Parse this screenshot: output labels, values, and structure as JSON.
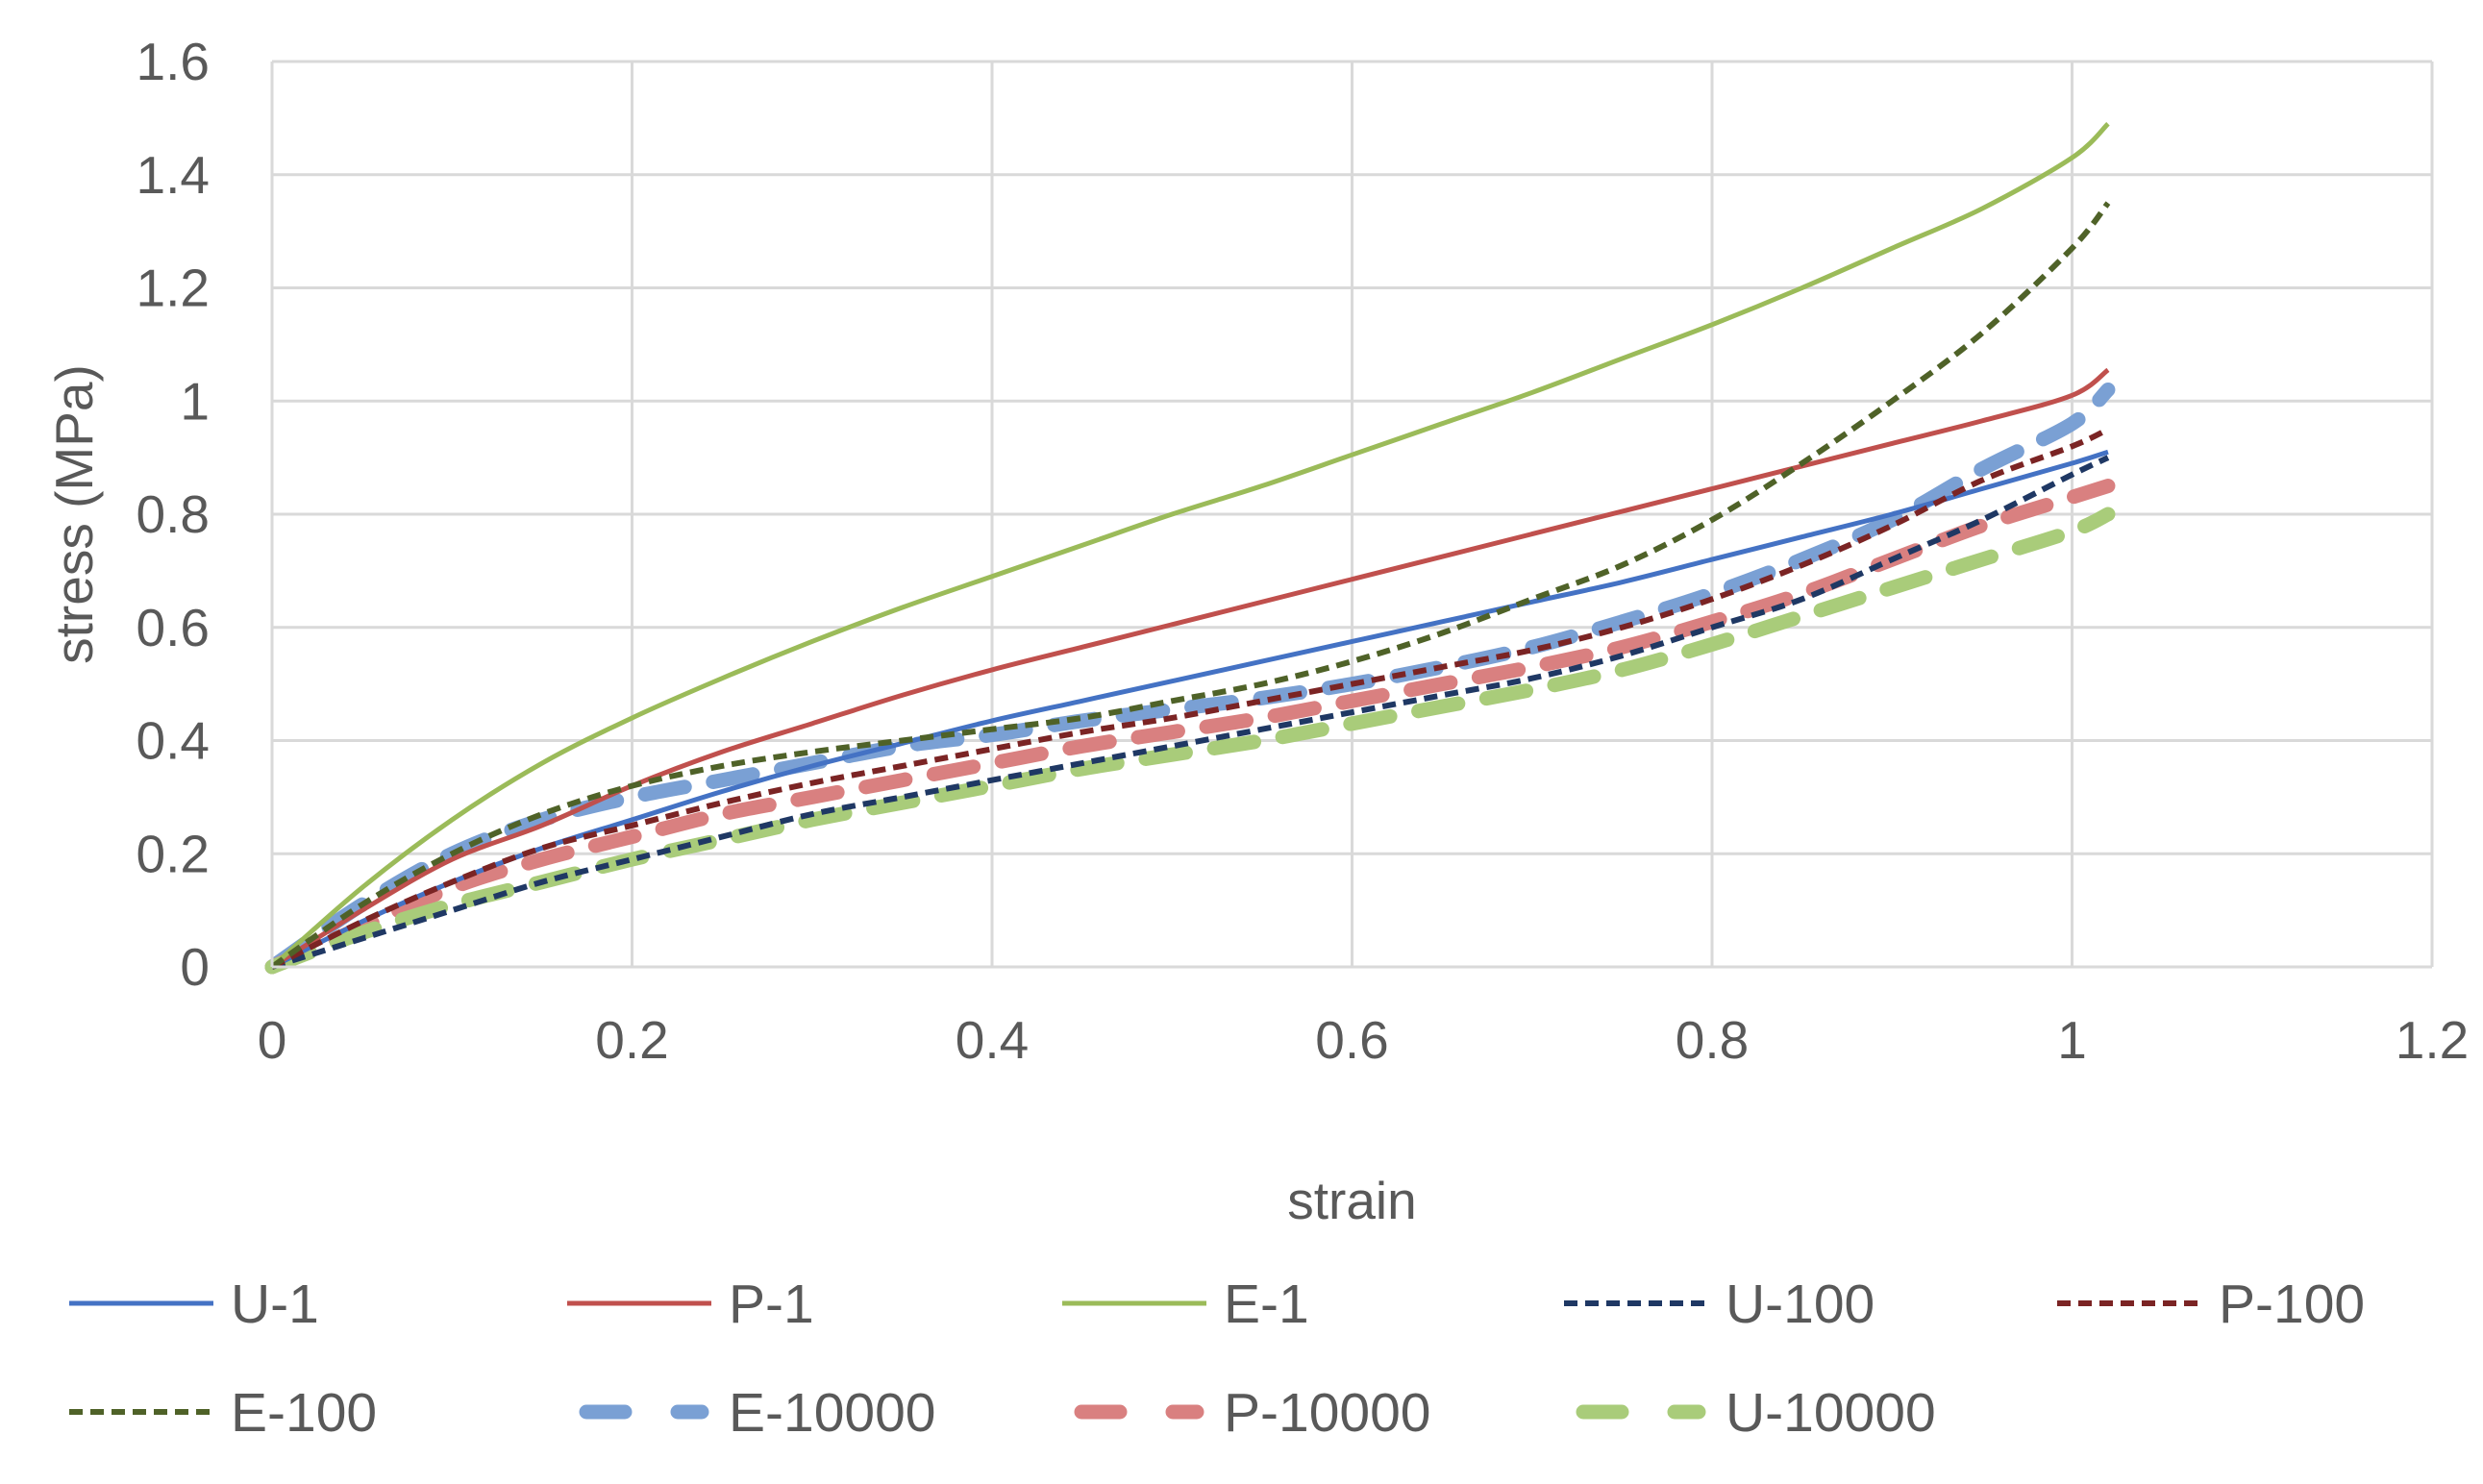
{
  "chart_data": {
    "type": "line",
    "title": "",
    "xlabel": "strain",
    "ylabel": "stress (MPa)",
    "xlim": [
      0,
      1.2
    ],
    "ylim": [
      0,
      1.6
    ],
    "xticks": [
      0,
      0.2,
      0.4,
      0.6,
      0.8,
      1,
      1.2
    ],
    "xtick_labels": [
      "0",
      "0.2",
      "0.4",
      "0.6",
      "0.8",
      "1",
      "1.2"
    ],
    "yticks": [
      0,
      0.2,
      0.4,
      0.6,
      0.8,
      1,
      1.2,
      1.4,
      1.6
    ],
    "ytick_labels": [
      "0",
      "0.2",
      "0.4",
      "0.6",
      "0.8",
      "1",
      "1.2",
      "1.4",
      "1.6"
    ],
    "grid": true,
    "legend_position": "bottom",
    "series": [
      {
        "name": "U-1",
        "color": "#4472C4",
        "style": "solid",
        "x": [
          0,
          0.05,
          0.1,
          0.15,
          0.2,
          0.25,
          0.3,
          0.35,
          0.4,
          0.45,
          0.5,
          0.55,
          0.6,
          0.65,
          0.7,
          0.75,
          0.8,
          0.85,
          0.9,
          0.95,
          1.0,
          1.02
        ],
        "y": [
          0,
          0.08,
          0.15,
          0.21,
          0.26,
          0.31,
          0.355,
          0.395,
          0.435,
          0.47,
          0.505,
          0.54,
          0.575,
          0.61,
          0.645,
          0.68,
          0.72,
          0.76,
          0.8,
          0.845,
          0.89,
          0.91
        ]
      },
      {
        "name": "P-1",
        "color": "#C0504D",
        "style": "solid",
        "x": [
          0,
          0.05,
          0.1,
          0.15,
          0.2,
          0.25,
          0.3,
          0.35,
          0.4,
          0.45,
          0.5,
          0.55,
          0.6,
          0.65,
          0.7,
          0.75,
          0.8,
          0.85,
          0.9,
          0.95,
          1.0,
          1.02
        ],
        "y": [
          0,
          0.1,
          0.19,
          0.25,
          0.32,
          0.38,
          0.43,
          0.48,
          0.525,
          0.565,
          0.605,
          0.645,
          0.685,
          0.725,
          0.765,
          0.805,
          0.845,
          0.885,
          0.925,
          0.965,
          1.01,
          1.055
        ]
      },
      {
        "name": "E-1",
        "color": "#9BBB59",
        "style": "solid",
        "x": [
          0,
          0.05,
          0.1,
          0.15,
          0.2,
          0.25,
          0.3,
          0.35,
          0.4,
          0.45,
          0.5,
          0.55,
          0.6,
          0.65,
          0.7,
          0.75,
          0.8,
          0.85,
          0.9,
          0.95,
          1.0,
          1.02
        ],
        "y": [
          0,
          0.14,
          0.26,
          0.36,
          0.44,
          0.51,
          0.575,
          0.635,
          0.69,
          0.745,
          0.8,
          0.85,
          0.905,
          0.96,
          1.015,
          1.075,
          1.135,
          1.2,
          1.27,
          1.34,
          1.43,
          1.49
        ]
      },
      {
        "name": "U-100",
        "color": "#1F3864",
        "style": "dashed",
        "x": [
          0,
          0.05,
          0.1,
          0.15,
          0.2,
          0.25,
          0.3,
          0.35,
          0.4,
          0.45,
          0.5,
          0.55,
          0.6,
          0.65,
          0.7,
          0.75,
          0.8,
          0.85,
          0.9,
          0.95,
          1.0,
          1.02
        ],
        "y": [
          0,
          0.05,
          0.1,
          0.15,
          0.19,
          0.23,
          0.27,
          0.3,
          0.33,
          0.36,
          0.39,
          0.42,
          0.45,
          0.48,
          0.51,
          0.55,
          0.6,
          0.65,
          0.72,
          0.79,
          0.87,
          0.9
        ]
      },
      {
        "name": "P-100",
        "color": "#7B2424",
        "style": "dashed",
        "x": [
          0,
          0.05,
          0.1,
          0.15,
          0.2,
          0.25,
          0.3,
          0.35,
          0.4,
          0.45,
          0.5,
          0.55,
          0.6,
          0.65,
          0.7,
          0.75,
          0.8,
          0.85,
          0.9,
          0.95,
          1.0,
          1.02
        ],
        "y": [
          0,
          0.08,
          0.15,
          0.21,
          0.25,
          0.29,
          0.325,
          0.355,
          0.385,
          0.415,
          0.44,
          0.47,
          0.5,
          0.53,
          0.56,
          0.6,
          0.65,
          0.71,
          0.78,
          0.86,
          0.92,
          0.95
        ]
      },
      {
        "name": "E-100",
        "color": "#4F6228",
        "style": "dashed",
        "x": [
          0,
          0.05,
          0.1,
          0.15,
          0.2,
          0.25,
          0.3,
          0.35,
          0.4,
          0.45,
          0.5,
          0.55,
          0.6,
          0.65,
          0.7,
          0.75,
          0.8,
          0.85,
          0.9,
          0.95,
          1.0,
          1.02
        ],
        "y": [
          0,
          0.11,
          0.2,
          0.27,
          0.32,
          0.355,
          0.38,
          0.4,
          0.42,
          0.44,
          0.47,
          0.5,
          0.54,
          0.59,
          0.65,
          0.71,
          0.79,
          0.89,
          1.0,
          1.12,
          1.27,
          1.35
        ]
      },
      {
        "name": "E-10000",
        "color": "#7AA0D4",
        "style": "longdash",
        "x": [
          0,
          0.05,
          0.1,
          0.15,
          0.2,
          0.25,
          0.3,
          0.35,
          0.4,
          0.45,
          0.5,
          0.55,
          0.6,
          0.65,
          0.7,
          0.75,
          0.8,
          0.85,
          0.9,
          0.95,
          1.0,
          1.02
        ],
        "y": [
          0,
          0.11,
          0.2,
          0.26,
          0.3,
          0.33,
          0.36,
          0.39,
          0.41,
          0.435,
          0.455,
          0.475,
          0.5,
          0.53,
          0.565,
          0.61,
          0.66,
          0.72,
          0.79,
          0.88,
          0.96,
          1.02
        ]
      },
      {
        "name": "P-10000",
        "color": "#D98080",
        "style": "longdash",
        "x": [
          0,
          0.05,
          0.1,
          0.15,
          0.2,
          0.25,
          0.3,
          0.35,
          0.4,
          0.45,
          0.5,
          0.55,
          0.6,
          0.65,
          0.7,
          0.75,
          0.8,
          0.85,
          0.9,
          0.95,
          1.0,
          1.02
        ],
        "y": [
          0,
          0.07,
          0.14,
          0.19,
          0.23,
          0.27,
          0.3,
          0.33,
          0.36,
          0.39,
          0.415,
          0.44,
          0.47,
          0.5,
          0.53,
          0.565,
          0.61,
          0.66,
          0.72,
          0.78,
          0.83,
          0.85
        ]
      },
      {
        "name": "U-10000",
        "color": "#A9CC7A",
        "style": "longdash",
        "x": [
          0,
          0.05,
          0.1,
          0.15,
          0.2,
          0.25,
          0.3,
          0.35,
          0.4,
          0.45,
          0.5,
          0.55,
          0.6,
          0.65,
          0.7,
          0.75,
          0.8,
          0.85,
          0.9,
          0.95,
          1.0,
          1.02
        ],
        "y": [
          0,
          0.06,
          0.11,
          0.15,
          0.19,
          0.225,
          0.26,
          0.29,
          0.32,
          0.35,
          0.375,
          0.4,
          0.43,
          0.46,
          0.49,
          0.525,
          0.57,
          0.62,
          0.67,
          0.72,
          0.77,
          0.8
        ]
      }
    ]
  }
}
